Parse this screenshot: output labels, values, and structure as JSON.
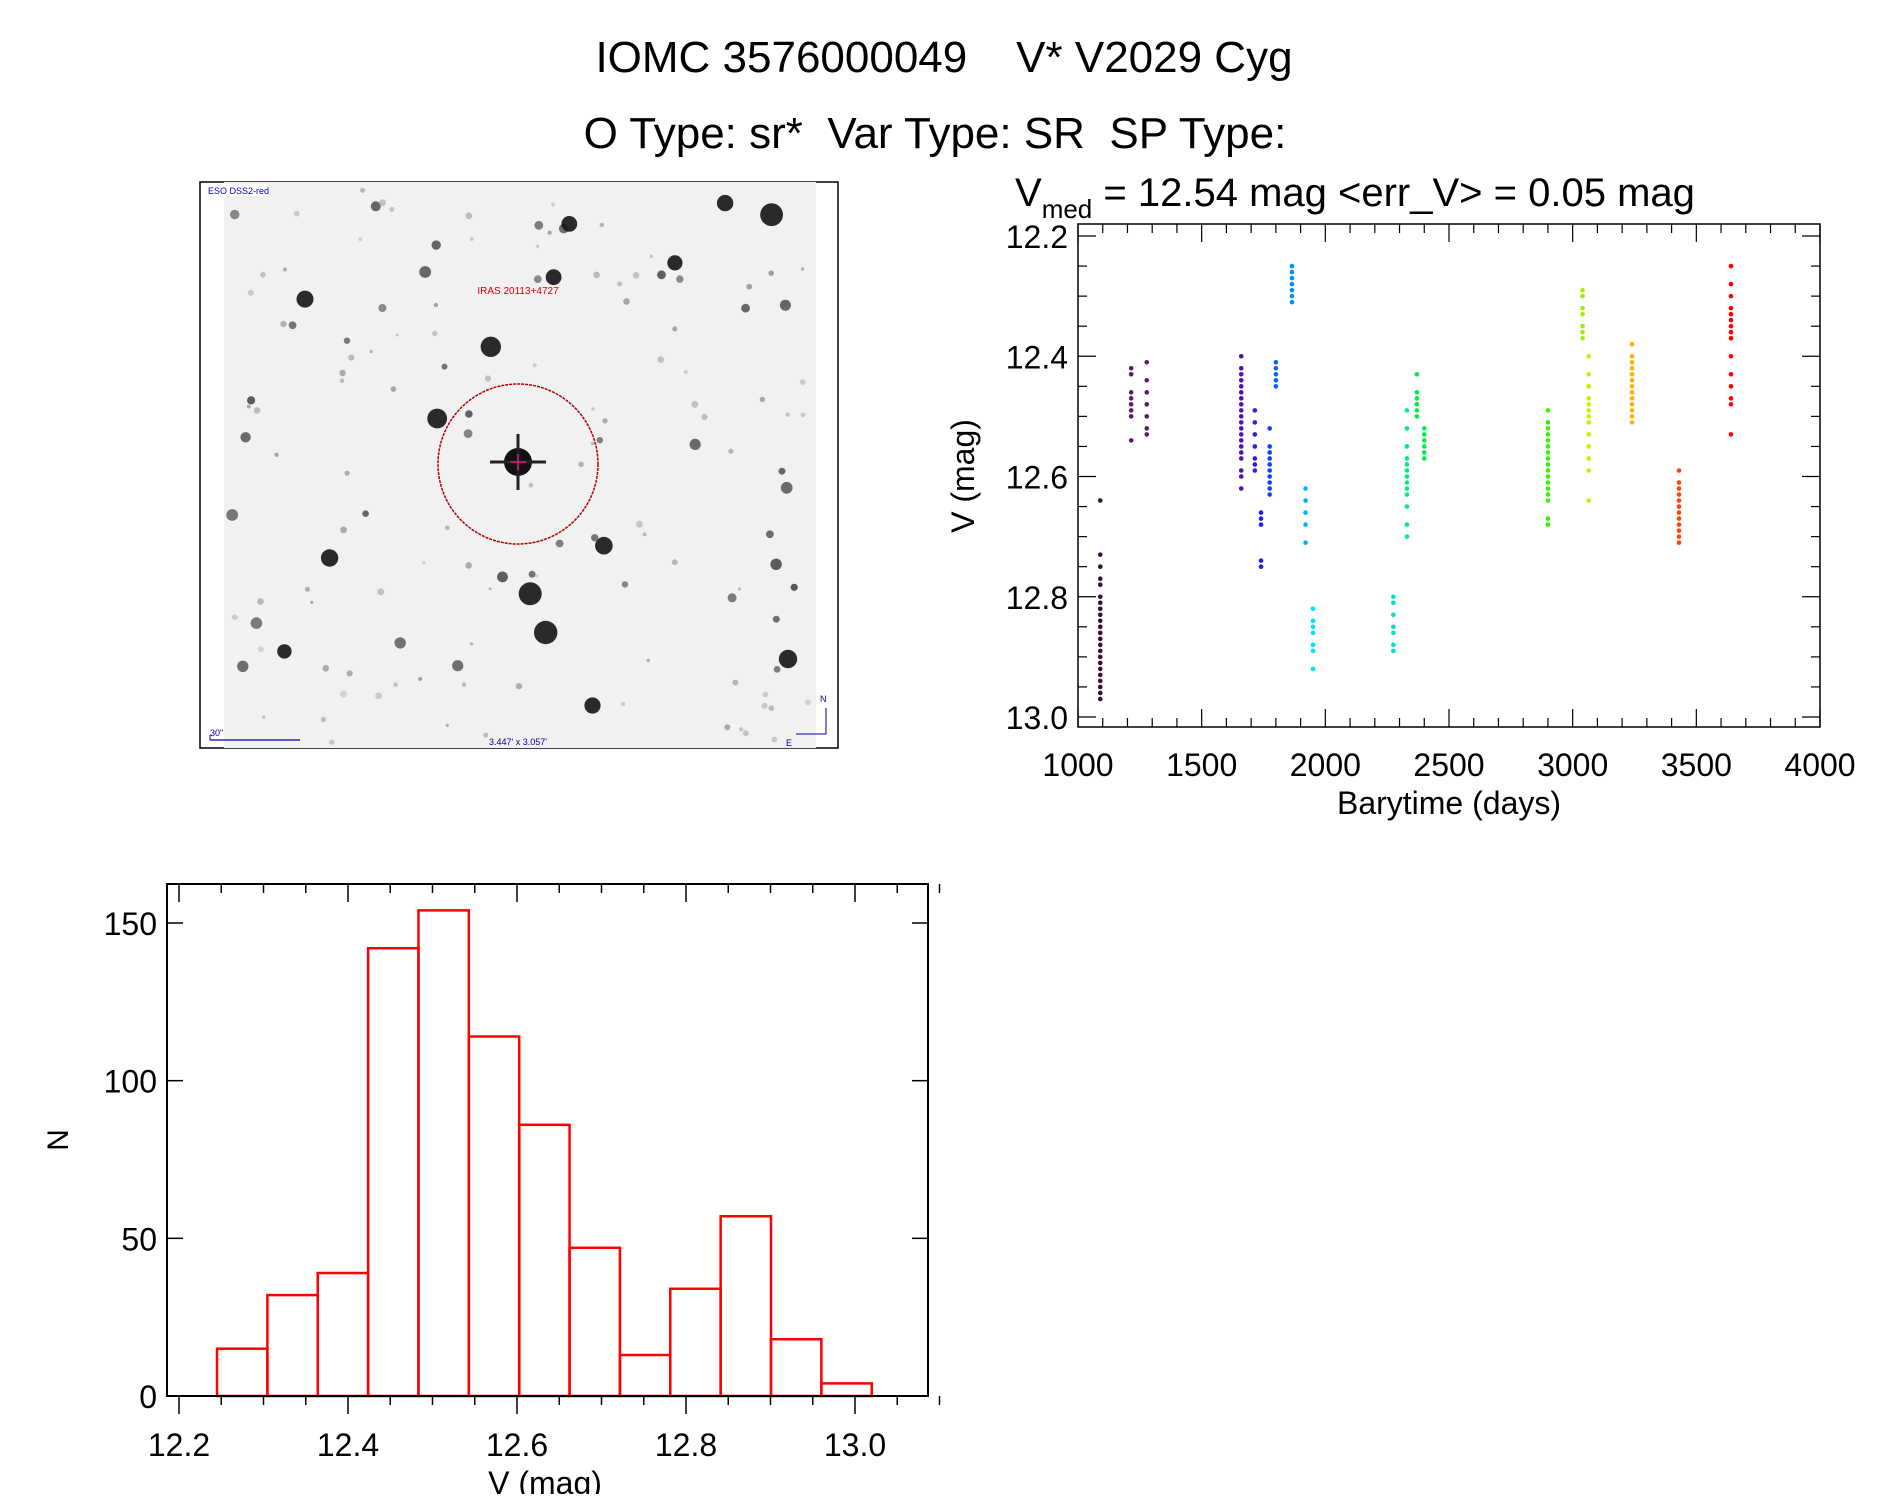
{
  "header": {
    "title_line1": "IOMC 3576000049    V* V2029 Cyg",
    "title_line2": "O Type: sr*  Var Type: SR  SP Type:"
  },
  "finder_image": {
    "survey_label": "ESO DSS2-red",
    "target_label": "IRAS 20113+4727",
    "scale_label": "30\"",
    "size_label": "3.447' x 3.057'",
    "north_label": "N",
    "east_label": "E",
    "circle_color": "#cc0000"
  },
  "chart_data": [
    {
      "type": "scatter",
      "title_prefix": "V",
      "title_sub": "med",
      "title_rest": " = 12.54 mag <err_V> = 0.05 mag",
      "xlabel": "Barytime (days)",
      "ylabel": "V (mag)",
      "xlim": [
        1000,
        4000
      ],
      "ylim": [
        13.0,
        12.2
      ],
      "y_inverted": true,
      "xticks": [
        "1000",
        "1500",
        "2000",
        "2500",
        "3000",
        "3500",
        "4000"
      ],
      "yticks": [
        "12.2",
        "12.4",
        "12.6",
        "12.8",
        "13.0"
      ],
      "groups": [
        {
          "t": 1090,
          "color": "#3c0a3c",
          "mags": [
            12.64,
            12.73,
            12.75,
            12.77,
            12.78,
            12.8,
            12.81,
            12.82,
            12.83,
            12.84,
            12.85,
            12.86,
            12.87,
            12.88,
            12.89,
            12.9,
            12.91,
            12.92,
            12.93,
            12.94,
            12.95,
            12.96,
            12.97
          ]
        },
        {
          "t": 1215,
          "color": "#5a1a6e",
          "mags": [
            12.42,
            12.43,
            12.46,
            12.47,
            12.48,
            12.49,
            12.5,
            12.54
          ]
        },
        {
          "t": 1278,
          "color": "#5a1a6e",
          "mags": [
            12.41,
            12.44,
            12.46,
            12.48,
            12.5,
            12.52,
            12.53
          ]
        },
        {
          "t": 1660,
          "color": "#5010b0",
          "mags": [
            12.4,
            12.42,
            12.43,
            12.44,
            12.45,
            12.46,
            12.47,
            12.48,
            12.49,
            12.5,
            12.51,
            12.52,
            12.53,
            12.54,
            12.55,
            12.56,
            12.57,
            12.59,
            12.6,
            12.62
          ]
        },
        {
          "t": 1715,
          "color": "#2a20e0",
          "mags": [
            12.49,
            12.51,
            12.53,
            12.55,
            12.57,
            12.58,
            12.59
          ]
        },
        {
          "t": 1740,
          "color": "#2020e8",
          "mags": [
            12.66,
            12.67,
            12.68,
            12.74,
            12.75
          ]
        },
        {
          "t": 1775,
          "color": "#1040ff",
          "mags": [
            12.52,
            12.55,
            12.56,
            12.57,
            12.58,
            12.59,
            12.6,
            12.61,
            12.62,
            12.63
          ]
        },
        {
          "t": 1800,
          "color": "#1060ff",
          "mags": [
            12.41,
            12.42,
            12.43,
            12.44,
            12.45
          ]
        },
        {
          "t": 1865,
          "color": "#0090ff",
          "mags": [
            12.25,
            12.26,
            12.27,
            12.28,
            12.29,
            12.3,
            12.31
          ]
        },
        {
          "t": 1920,
          "color": "#00b0ff",
          "mags": [
            12.62,
            12.64,
            12.66,
            12.68,
            12.71
          ]
        },
        {
          "t": 1950,
          "color": "#00e0ff",
          "mags": [
            12.82,
            12.84,
            12.85,
            12.86,
            12.88,
            12.89,
            12.92
          ]
        },
        {
          "t": 2275,
          "color": "#00e0c8",
          "mags": [
            12.8,
            12.81,
            12.83,
            12.85,
            12.86,
            12.88,
            12.89
          ]
        },
        {
          "t": 2330,
          "color": "#00ee80",
          "mags": [
            12.49,
            12.52,
            12.55,
            12.57,
            12.58,
            12.59,
            12.6,
            12.61,
            12.62,
            12.63,
            12.65,
            12.68,
            12.7
          ]
        },
        {
          "t": 2370,
          "color": "#00ee44",
          "mags": [
            12.43,
            12.46,
            12.47,
            12.48,
            12.49,
            12.5
          ]
        },
        {
          "t": 2400,
          "color": "#00ee44",
          "mags": [
            12.52,
            12.53,
            12.54,
            12.55,
            12.56,
            12.57
          ]
        },
        {
          "t": 2900,
          "color": "#40ee00",
          "mags": [
            12.49,
            12.51,
            12.52,
            12.53,
            12.54,
            12.55,
            12.56,
            12.57,
            12.58,
            12.59,
            12.6,
            12.61,
            12.62,
            12.63,
            12.64,
            12.67,
            12.68
          ]
        },
        {
          "t": 3040,
          "color": "#a0ee00",
          "mags": [
            12.29,
            12.3,
            12.32,
            12.33,
            12.35,
            12.36,
            12.37
          ]
        },
        {
          "t": 3065,
          "color": "#c8ee00",
          "mags": [
            12.4,
            12.43,
            12.45,
            12.47,
            12.48,
            12.49,
            12.5,
            12.51,
            12.53,
            12.55,
            12.57,
            12.59,
            12.64
          ]
        },
        {
          "t": 3240,
          "color": "#ffb000",
          "mags": [
            12.38,
            12.4,
            12.41,
            12.42,
            12.43,
            12.44,
            12.45,
            12.46,
            12.47,
            12.48,
            12.49,
            12.5,
            12.51
          ]
        },
        {
          "t": 3430,
          "color": "#ff4400",
          "mags": [
            12.59,
            12.61,
            12.62,
            12.63,
            12.64,
            12.65,
            12.66,
            12.67,
            12.68,
            12.69,
            12.7,
            12.71
          ]
        },
        {
          "t": 3640,
          "color": "#ff0000",
          "mags": [
            12.25,
            12.28,
            12.3,
            12.32,
            12.33,
            12.34,
            12.35,
            12.36,
            12.37,
            12.4,
            12.43,
            12.45,
            12.47,
            12.48,
            12.53
          ]
        }
      ]
    },
    {
      "type": "bar",
      "subtype": "histogram",
      "xlabel": "V (mag)",
      "ylabel": "N",
      "xlim": [
        12.18,
        13.1
      ],
      "ylim": [
        0,
        160
      ],
      "xticks": [
        "12.2",
        "12.4",
        "12.6",
        "12.8",
        "13.0"
      ],
      "yticks": [
        "0",
        "50",
        "100",
        "150"
      ],
      "bin_start": 12.245,
      "bin_width": 0.0596,
      "values": [
        15,
        32,
        39,
        142,
        154,
        114,
        86,
        47,
        13,
        34,
        57,
        18,
        4
      ],
      "color": "#ff0000"
    }
  ]
}
